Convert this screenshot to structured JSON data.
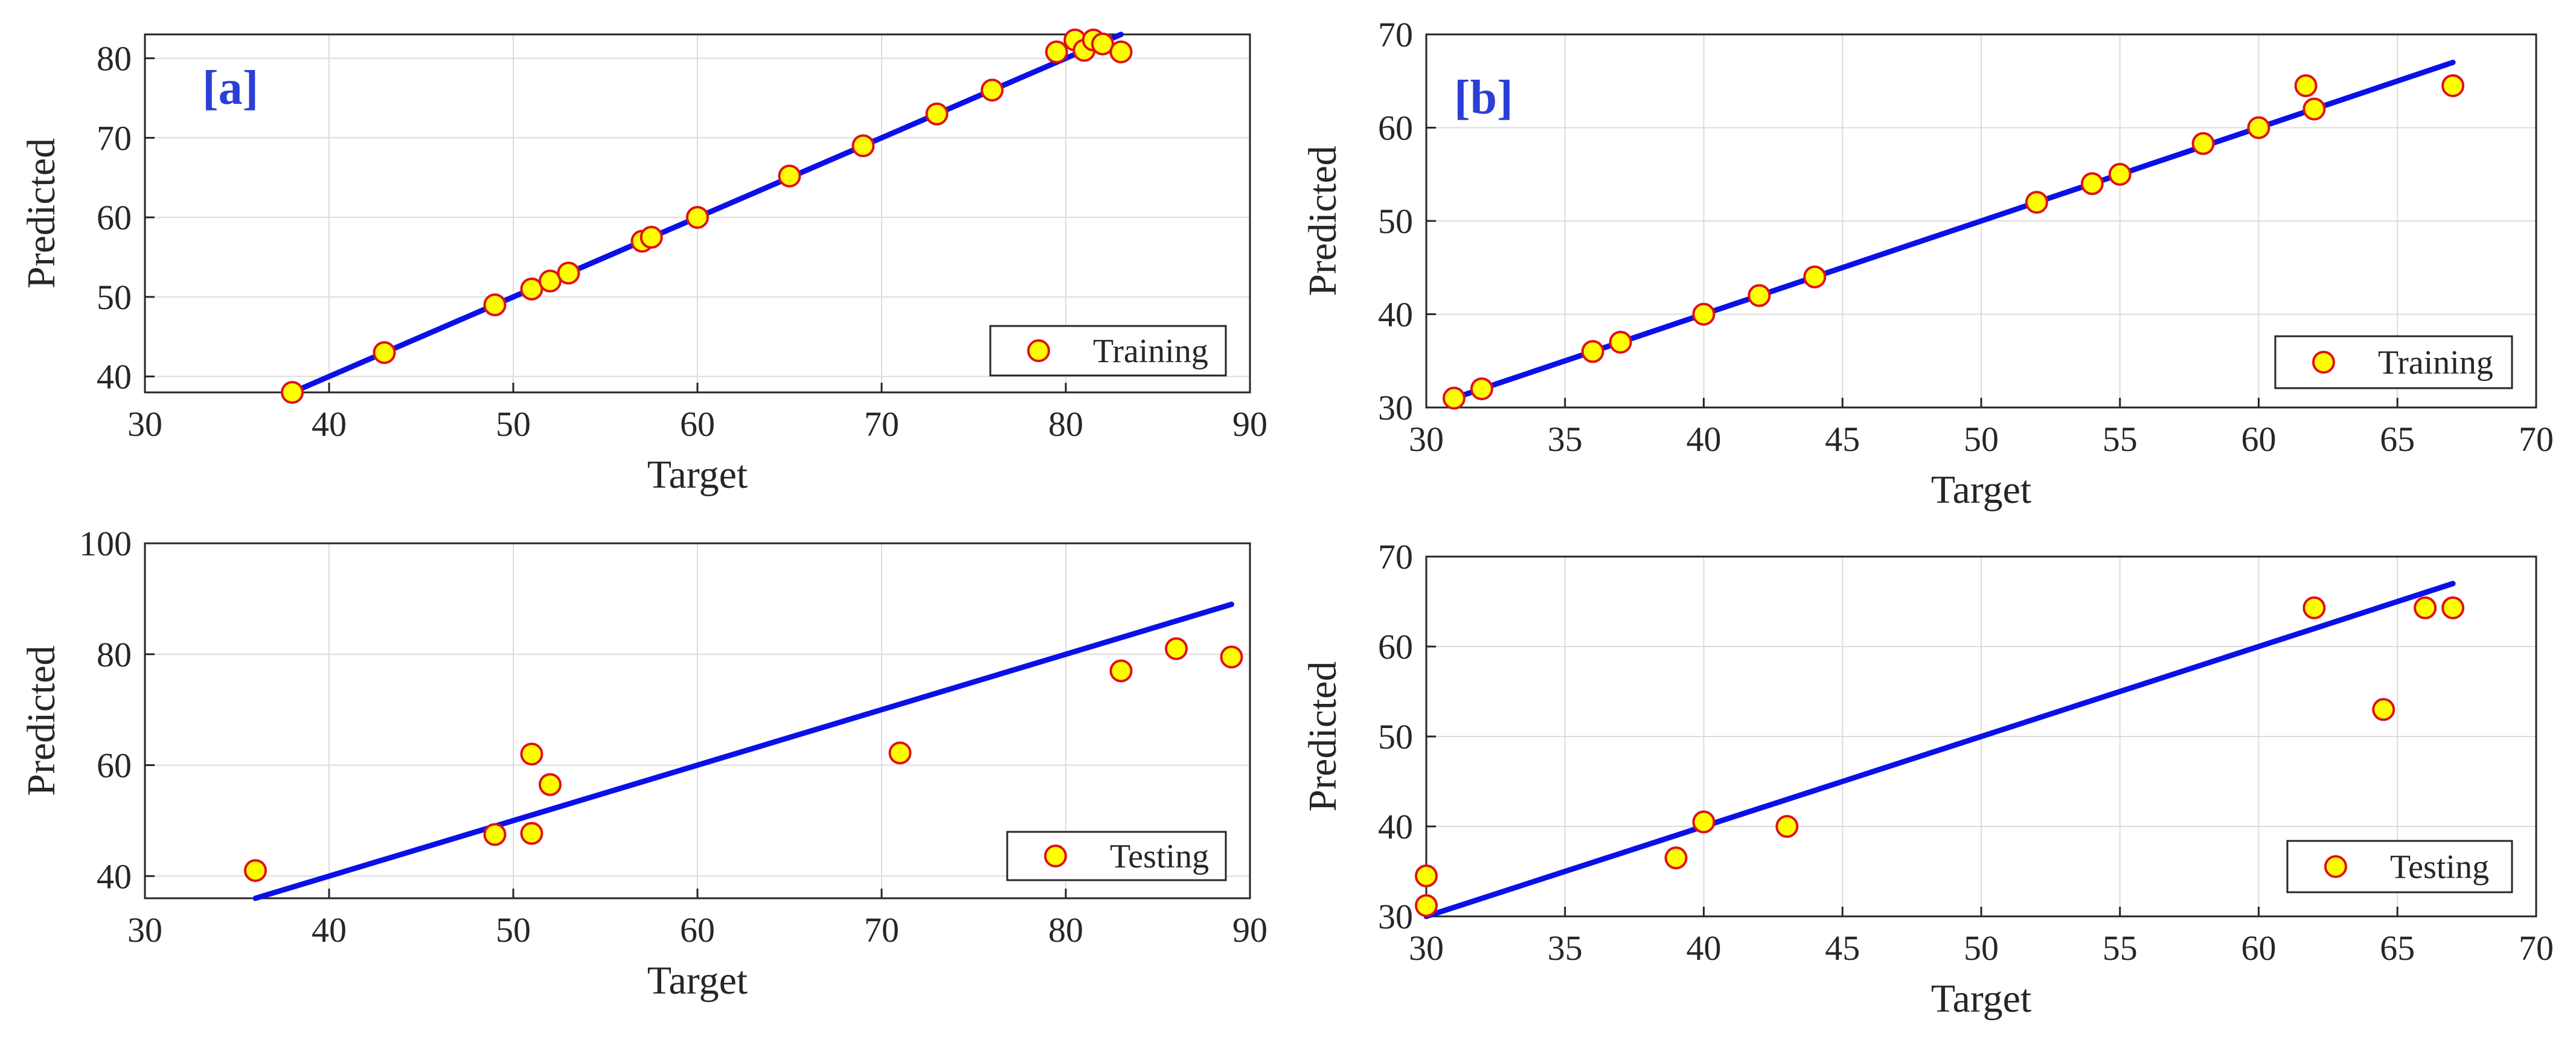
{
  "chart_data": [
    {
      "id": "a-train",
      "type": "scatter",
      "tag": "[a]",
      "xlabel": "Target",
      "ylabel": "Predicted",
      "xlim": [
        30,
        90
      ],
      "ylim": [
        38,
        83
      ],
      "xticks": [
        30,
        40,
        50,
        60,
        70,
        80,
        90
      ],
      "yticks": [
        40,
        50,
        60,
        70,
        80
      ],
      "legend": "Training",
      "legend_position": "bottom-right",
      "grid": true,
      "fit_line": [
        [
          38,
          38
        ],
        [
          83,
          83
        ]
      ],
      "points": [
        [
          38,
          38
        ],
        [
          43,
          43
        ],
        [
          49,
          49
        ],
        [
          51,
          51
        ],
        [
          52,
          52
        ],
        [
          53,
          53
        ],
        [
          57,
          57
        ],
        [
          57.5,
          57.5
        ],
        [
          60,
          60
        ],
        [
          65,
          65.2
        ],
        [
          69,
          69
        ],
        [
          73,
          73
        ],
        [
          76,
          76
        ],
        [
          79.5,
          80.8
        ],
        [
          80.5,
          82.3
        ],
        [
          81,
          81
        ],
        [
          81.5,
          82.3
        ],
        [
          82,
          81.8
        ],
        [
          83,
          80.8
        ]
      ]
    },
    {
      "id": "b-train",
      "type": "scatter",
      "tag": "[b]",
      "xlabel": "Target",
      "ylabel": "Predicted",
      "xlim": [
        30,
        70
      ],
      "ylim": [
        30,
        70
      ],
      "xticks": [
        30,
        35,
        40,
        45,
        50,
        55,
        60,
        65,
        70
      ],
      "yticks": [
        30,
        40,
        50,
        60,
        70
      ],
      "legend": "Training",
      "legend_position": "bottom-right",
      "grid": true,
      "fit_line": [
        [
          31,
          31
        ],
        [
          67,
          67
        ]
      ],
      "points": [
        [
          31,
          31
        ],
        [
          32,
          32
        ],
        [
          36,
          36
        ],
        [
          37,
          37
        ],
        [
          40,
          40
        ],
        [
          42,
          42
        ],
        [
          44,
          44
        ],
        [
          52,
          52
        ],
        [
          54,
          54
        ],
        [
          55,
          55
        ],
        [
          58,
          58.3
        ],
        [
          60,
          60
        ],
        [
          61.7,
          64.5
        ],
        [
          62,
          62
        ],
        [
          67,
          64.5
        ]
      ]
    },
    {
      "id": "a-test",
      "type": "scatter",
      "tag": "",
      "xlabel": "Target",
      "ylabel": "Predicted",
      "xlim": [
        30,
        90
      ],
      "ylim": [
        36,
        100
      ],
      "xticks": [
        30,
        40,
        50,
        60,
        70,
        80,
        90
      ],
      "yticks": [
        40,
        60,
        80,
        100
      ],
      "legend": "Testing",
      "legend_position": "bottom-right",
      "grid": true,
      "fit_line": [
        [
          36,
          36
        ],
        [
          89,
          89
        ]
      ],
      "points": [
        [
          36,
          41
        ],
        [
          49,
          47.5
        ],
        [
          51,
          47.7
        ],
        [
          51,
          62
        ],
        [
          52,
          56.5
        ],
        [
          71,
          62.2
        ],
        [
          83,
          77
        ],
        [
          86,
          81
        ],
        [
          89,
          79.5
        ]
      ]
    },
    {
      "id": "b-test",
      "type": "scatter",
      "tag": "",
      "xlabel": "Target",
      "ylabel": "Predicted",
      "xlim": [
        30,
        70
      ],
      "ylim": [
        30,
        70
      ],
      "xticks": [
        30,
        35,
        40,
        45,
        50,
        55,
        60,
        65,
        70
      ],
      "yticks": [
        30,
        40,
        50,
        60,
        70
      ],
      "legend": "Testing",
      "legend_position": "bottom-right",
      "grid": true,
      "fit_line": [
        [
          30,
          30
        ],
        [
          67,
          67
        ]
      ],
      "points": [
        [
          30,
          34.5
        ],
        [
          30,
          31.2
        ],
        [
          39,
          36.5
        ],
        [
          40,
          40.5
        ],
        [
          43,
          40
        ],
        [
          62,
          64.3
        ],
        [
          64.5,
          53
        ],
        [
          66,
          64.3
        ],
        [
          67,
          64.3
        ]
      ]
    }
  ]
}
